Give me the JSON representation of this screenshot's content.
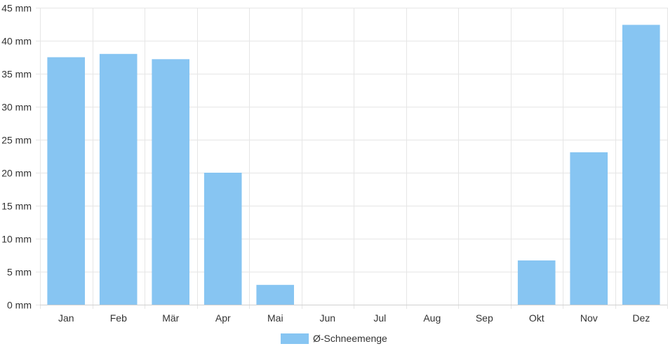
{
  "chart_data": {
    "type": "bar",
    "categories": [
      "Jan",
      "Feb",
      "Mär",
      "Apr",
      "Mai",
      "Jun",
      "Jul",
      "Aug",
      "Sep",
      "Okt",
      "Nov",
      "Dez"
    ],
    "series": [
      {
        "name": "Ø-Schneemenge",
        "values": [
          37.5,
          38.0,
          37.2,
          20.0,
          3.0,
          0,
          0,
          0,
          0,
          6.7,
          23.1,
          42.4
        ]
      }
    ],
    "ylim": [
      0,
      45
    ],
    "yticks": [
      0,
      5,
      10,
      15,
      20,
      25,
      30,
      35,
      40,
      45
    ],
    "yunit": "mm",
    "grid": true,
    "legend_position": "bottom",
    "bar_color": "#87C5F2"
  }
}
